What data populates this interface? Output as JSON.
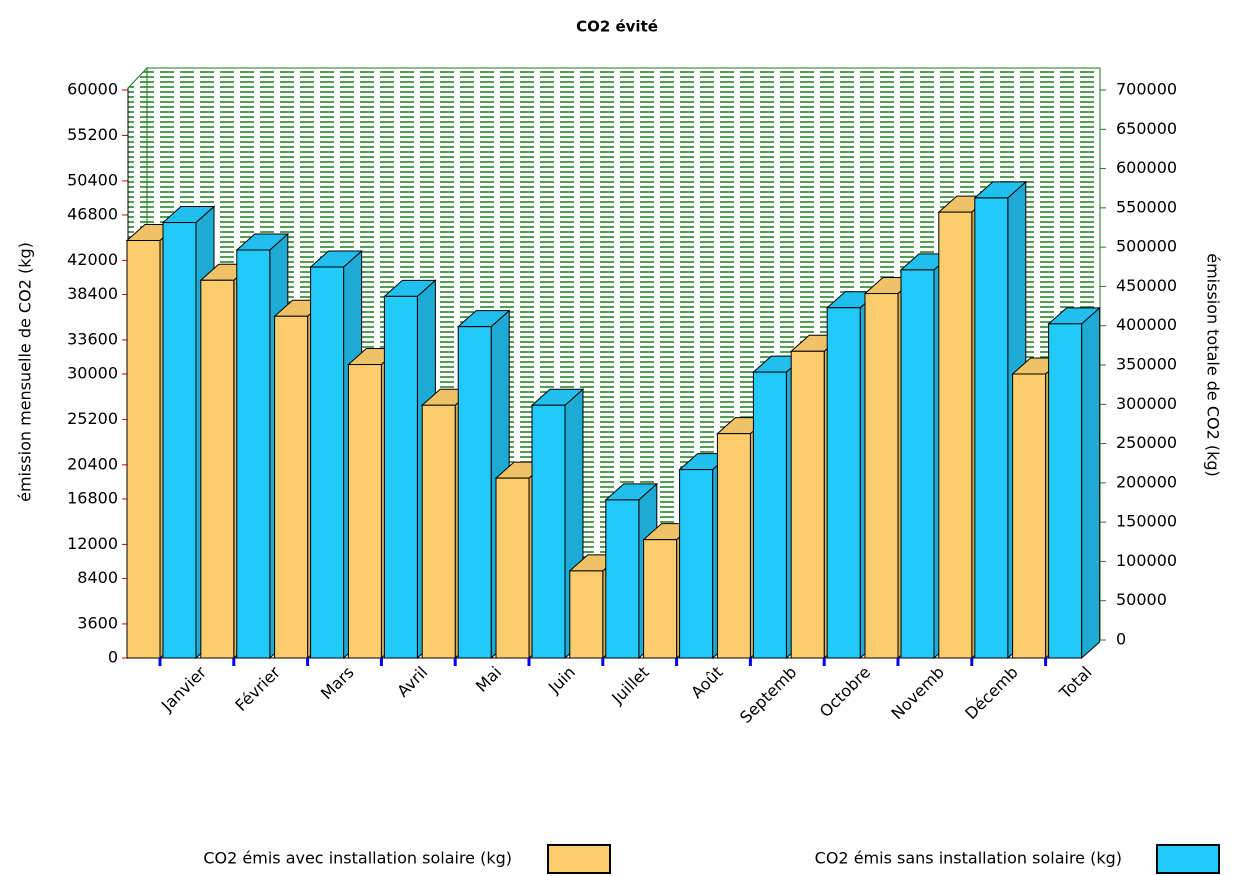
{
  "chart_data": {
    "type": "bar3d",
    "title": "CO2 évité",
    "y_label": "émission mensuelle de CO2 (kg)",
    "y2_label": "émission totale de CO2 (kg)",
    "categories": [
      "Janvier",
      "Février",
      "Mars",
      "Avril",
      "Mai",
      "Juin",
      "Juillet",
      "Août",
      "Septemb",
      "Octobre",
      "Novemb",
      "Décemb",
      "Total"
    ],
    "series": [
      {
        "name": "CO2 émis avec installation solaire (kg)",
        "color": "#fdcc6c",
        "values": [
          44100,
          39900,
          36100,
          31000,
          26700,
          19000,
          9200,
          12500,
          23700,
          32400,
          38500,
          47100,
          30000
        ]
      },
      {
        "name": "CO2 émis sans installation solaire (kg)",
        "color": "#22c9fb",
        "values": [
          46000,
          43100,
          41300,
          38200,
          35000,
          26700,
          16700,
          19900,
          30200,
          37000,
          41000,
          48600,
          35300
        ]
      }
    ],
    "ylim": [
      0,
      60000
    ],
    "yticks": [
      0,
      3600,
      8400,
      12000,
      16800,
      20400,
      25200,
      30000,
      33600,
      38400,
      42000,
      46800,
      50400,
      55200,
      60000
    ],
    "y2lim": [
      0,
      700000
    ],
    "y2ticks": [
      0,
      50000,
      100000,
      150000,
      200000,
      250000,
      300000,
      350000,
      400000,
      450000,
      500000,
      550000,
      600000,
      650000,
      700000
    ]
  }
}
